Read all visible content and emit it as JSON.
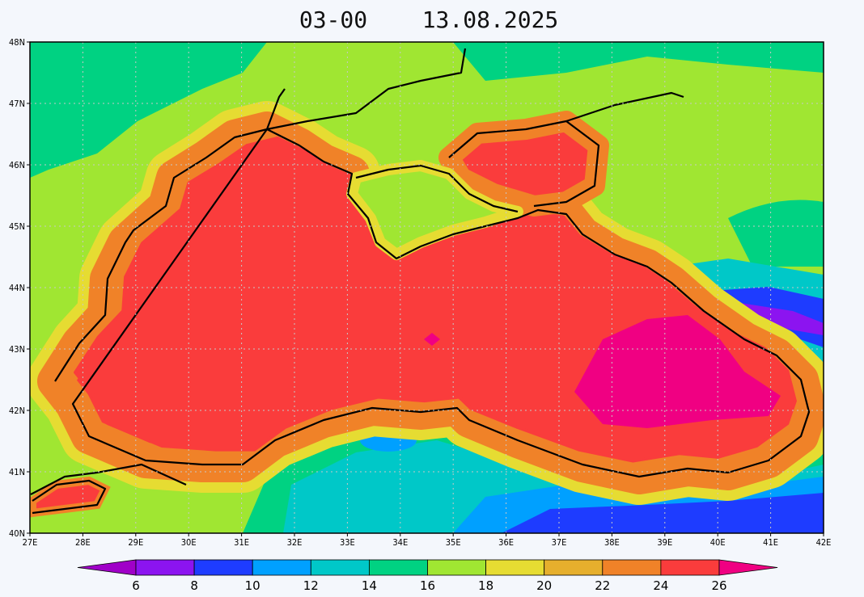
{
  "map": {
    "title_time": "03-00",
    "title_date": "13.08.2025",
    "xlim": [
      27,
      42
    ],
    "ylim": [
      40,
      48
    ],
    "xticks": [
      {
        "value": 27,
        "label": "27E"
      },
      {
        "value": 28,
        "label": "28E"
      },
      {
        "value": 29,
        "label": "29E"
      },
      {
        "value": 30,
        "label": "30E"
      },
      {
        "value": 31,
        "label": "31E"
      },
      {
        "value": 32,
        "label": "32E"
      },
      {
        "value": 33,
        "label": "33E"
      },
      {
        "value": 34,
        "label": "34E"
      },
      {
        "value": 35,
        "label": "35E"
      },
      {
        "value": 36,
        "label": "36E"
      },
      {
        "value": 37,
        "label": "37E"
      },
      {
        "value": 38,
        "label": "38E"
      },
      {
        "value": 39,
        "label": "39E"
      },
      {
        "value": 40,
        "label": "40E"
      },
      {
        "value": 41,
        "label": "41E"
      },
      {
        "value": 42,
        "label": "42E"
      }
    ],
    "yticks": [
      {
        "value": 40,
        "label": "40N"
      },
      {
        "value": 41,
        "label": "41N"
      },
      {
        "value": 42,
        "label": "42N"
      },
      {
        "value": 43,
        "label": "43N"
      },
      {
        "value": 44,
        "label": "44N"
      },
      {
        "value": 45,
        "label": "45N"
      },
      {
        "value": 46,
        "label": "46N"
      },
      {
        "value": 47,
        "label": "47N"
      },
      {
        "value": 48,
        "label": "48N"
      }
    ],
    "grid": true,
    "colorbar": {
      "levels": [
        6,
        8,
        10,
        12,
        14,
        16,
        18,
        20,
        22,
        24,
        26
      ],
      "colors": [
        "#a000c8",
        "#8c14f0",
        "#1e3cff",
        "#00a0ff",
        "#00c8c8",
        "#00d282",
        "#a0e632",
        "#e6dc32",
        "#e6af2d",
        "#f08228",
        "#fa3c3c",
        "#f00082"
      ]
    }
  }
}
